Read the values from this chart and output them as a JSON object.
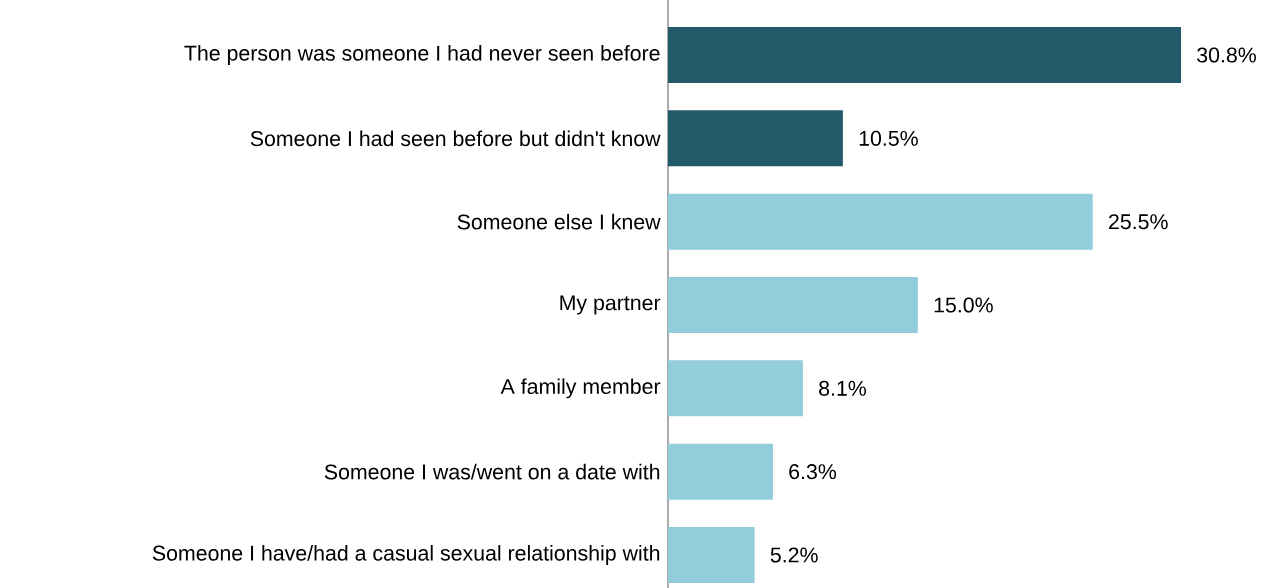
{
  "chart_data": {
    "type": "bar",
    "orientation": "horizontal",
    "categories": [
      "The person was someone I had never seen before",
      "Someone I had seen before but didn't know",
      "Someone else I knew",
      "My partner",
      "A family member",
      "Someone I was/went on a date with",
      "Someone I have/had a casual sexual relationship with"
    ],
    "values": [
      30.8,
      10.5,
      25.5,
      15.0,
      8.1,
      6.3,
      5.2
    ],
    "colors": [
      "#235a6a",
      "#235a6a",
      "#92cddc",
      "#92cddc",
      "#92cddc",
      "#92cddc",
      "#92cddc"
    ],
    "value_labels": [
      "30.8%",
      "10.5%",
      "25.5%",
      "15.0%",
      "8.1%",
      "6.3%",
      "5.2%"
    ]
  }
}
